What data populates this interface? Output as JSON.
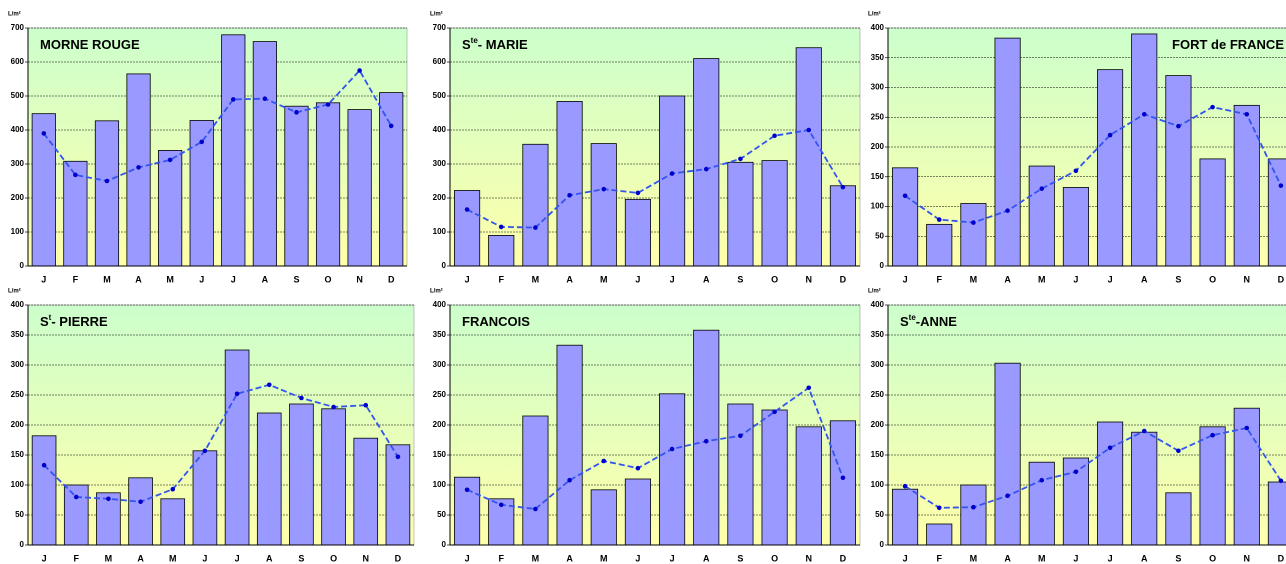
{
  "chart_data": [
    {
      "type": "bar",
      "title_parts": [
        "MORNE ROUGE"
      ],
      "y_label": "L/m²",
      "categories": [
        "J",
        "F",
        "M",
        "A",
        "M",
        "J",
        "J",
        "A",
        "S",
        "O",
        "N",
        "D"
      ],
      "series": [
        {
          "type": "bar",
          "color": "#9999ff",
          "values": [
            448,
            308,
            427,
            565,
            340,
            428,
            680,
            660,
            470,
            480,
            460,
            510
          ]
        },
        {
          "type": "line",
          "color": "#3355ee",
          "values": [
            390,
            268,
            250,
            290,
            312,
            365,
            490,
            492,
            452,
            475,
            575,
            412
          ]
        }
      ],
      "ylim": [
        0,
        700
      ],
      "yticks": [
        0,
        100,
        200,
        300,
        400,
        500,
        600,
        700
      ],
      "grid": true
    },
    {
      "type": "bar",
      "title_parts": [
        "S",
        "te",
        "- MARIE"
      ],
      "y_label": "L/m²",
      "categories": [
        "J",
        "F",
        "M",
        "A",
        "M",
        "J",
        "J",
        "A",
        "S",
        "O",
        "N",
        "D"
      ],
      "series": [
        {
          "type": "bar",
          "color": "#9999ff",
          "values": [
            222,
            90,
            358,
            484,
            360,
            196,
            500,
            610,
            305,
            310,
            642,
            236
          ]
        },
        {
          "type": "line",
          "color": "#3355ee",
          "values": [
            166,
            115,
            113,
            208,
            226,
            215,
            272,
            285,
            315,
            383,
            400,
            232
          ]
        }
      ],
      "ylim": [
        0,
        700
      ],
      "yticks": [
        0,
        100,
        200,
        300,
        400,
        500,
        600,
        700
      ],
      "grid": true
    },
    {
      "type": "bar",
      "title_parts": [
        "FORT de FRANCE"
      ],
      "title_position": "right",
      "y_label": "L/m²",
      "categories": [
        "J",
        "F",
        "M",
        "A",
        "M",
        "J",
        "J",
        "A",
        "S",
        "O",
        "N",
        "D"
      ],
      "series": [
        {
          "type": "bar",
          "color": "#9999ff",
          "values": [
            165,
            70,
            105,
            383,
            168,
            132,
            330,
            390,
            320,
            180,
            270,
            180
          ]
        },
        {
          "type": "line",
          "color": "#3355ee",
          "values": [
            118,
            78,
            73,
            93,
            130,
            160,
            220,
            255,
            235,
            267,
            255,
            135
          ]
        }
      ],
      "ylim": [
        0,
        400
      ],
      "yticks": [
        0,
        50,
        100,
        150,
        200,
        250,
        300,
        350,
        400
      ],
      "grid": true
    },
    {
      "type": "bar",
      "title_parts": [
        "S",
        "t",
        "- PIERRE"
      ],
      "y_label": "L/m²",
      "categories": [
        "J",
        "F",
        "M",
        "A",
        "M",
        "J",
        "J",
        "A",
        "S",
        "O",
        "N",
        "D"
      ],
      "series": [
        {
          "type": "bar",
          "color": "#9999ff",
          "values": [
            182,
            100,
            87,
            112,
            77,
            157,
            325,
            220,
            235,
            227,
            178,
            167
          ]
        },
        {
          "type": "line",
          "color": "#3355ee",
          "values": [
            133,
            80,
            77,
            72,
            93,
            157,
            252,
            267,
            245,
            230,
            233,
            147
          ]
        }
      ],
      "ylim": [
        0,
        400
      ],
      "yticks": [
        0,
        50,
        100,
        150,
        200,
        250,
        300,
        350,
        400
      ],
      "grid": true
    },
    {
      "type": "bar",
      "title_parts": [
        "FRANCOIS"
      ],
      "y_label": "L/m²",
      "categories": [
        "J",
        "F",
        "M",
        "A",
        "M",
        "J",
        "J",
        "A",
        "S",
        "O",
        "N",
        "D"
      ],
      "series": [
        {
          "type": "bar",
          "color": "#9999ff",
          "values": [
            113,
            77,
            215,
            333,
            92,
            110,
            252,
            358,
            235,
            225,
            197,
            207
          ]
        },
        {
          "type": "line",
          "color": "#3355ee",
          "values": [
            92,
            67,
            60,
            108,
            140,
            128,
            160,
            173,
            182,
            222,
            262,
            112
          ]
        }
      ],
      "ylim": [
        0,
        400
      ],
      "yticks": [
        0,
        50,
        100,
        150,
        200,
        250,
        300,
        350,
        400
      ],
      "grid": true
    },
    {
      "type": "bar",
      "title_parts": [
        "S",
        "te",
        "-ANNE"
      ],
      "y_label": "L/m²",
      "categories": [
        "J",
        "F",
        "M",
        "A",
        "M",
        "J",
        "J",
        "A",
        "S",
        "O",
        "N",
        "D"
      ],
      "series": [
        {
          "type": "bar",
          "color": "#9999ff",
          "values": [
            93,
            35,
            100,
            303,
            138,
            145,
            205,
            188,
            87,
            197,
            228,
            105
          ]
        },
        {
          "type": "line",
          "color": "#3355ee",
          "values": [
            98,
            62,
            63,
            82,
            108,
            122,
            162,
            190,
            157,
            183,
            195,
            107
          ]
        }
      ],
      "ylim": [
        0,
        400
      ],
      "yticks": [
        0,
        50,
        100,
        150,
        200,
        250,
        300,
        350,
        400
      ],
      "grid": true
    }
  ]
}
